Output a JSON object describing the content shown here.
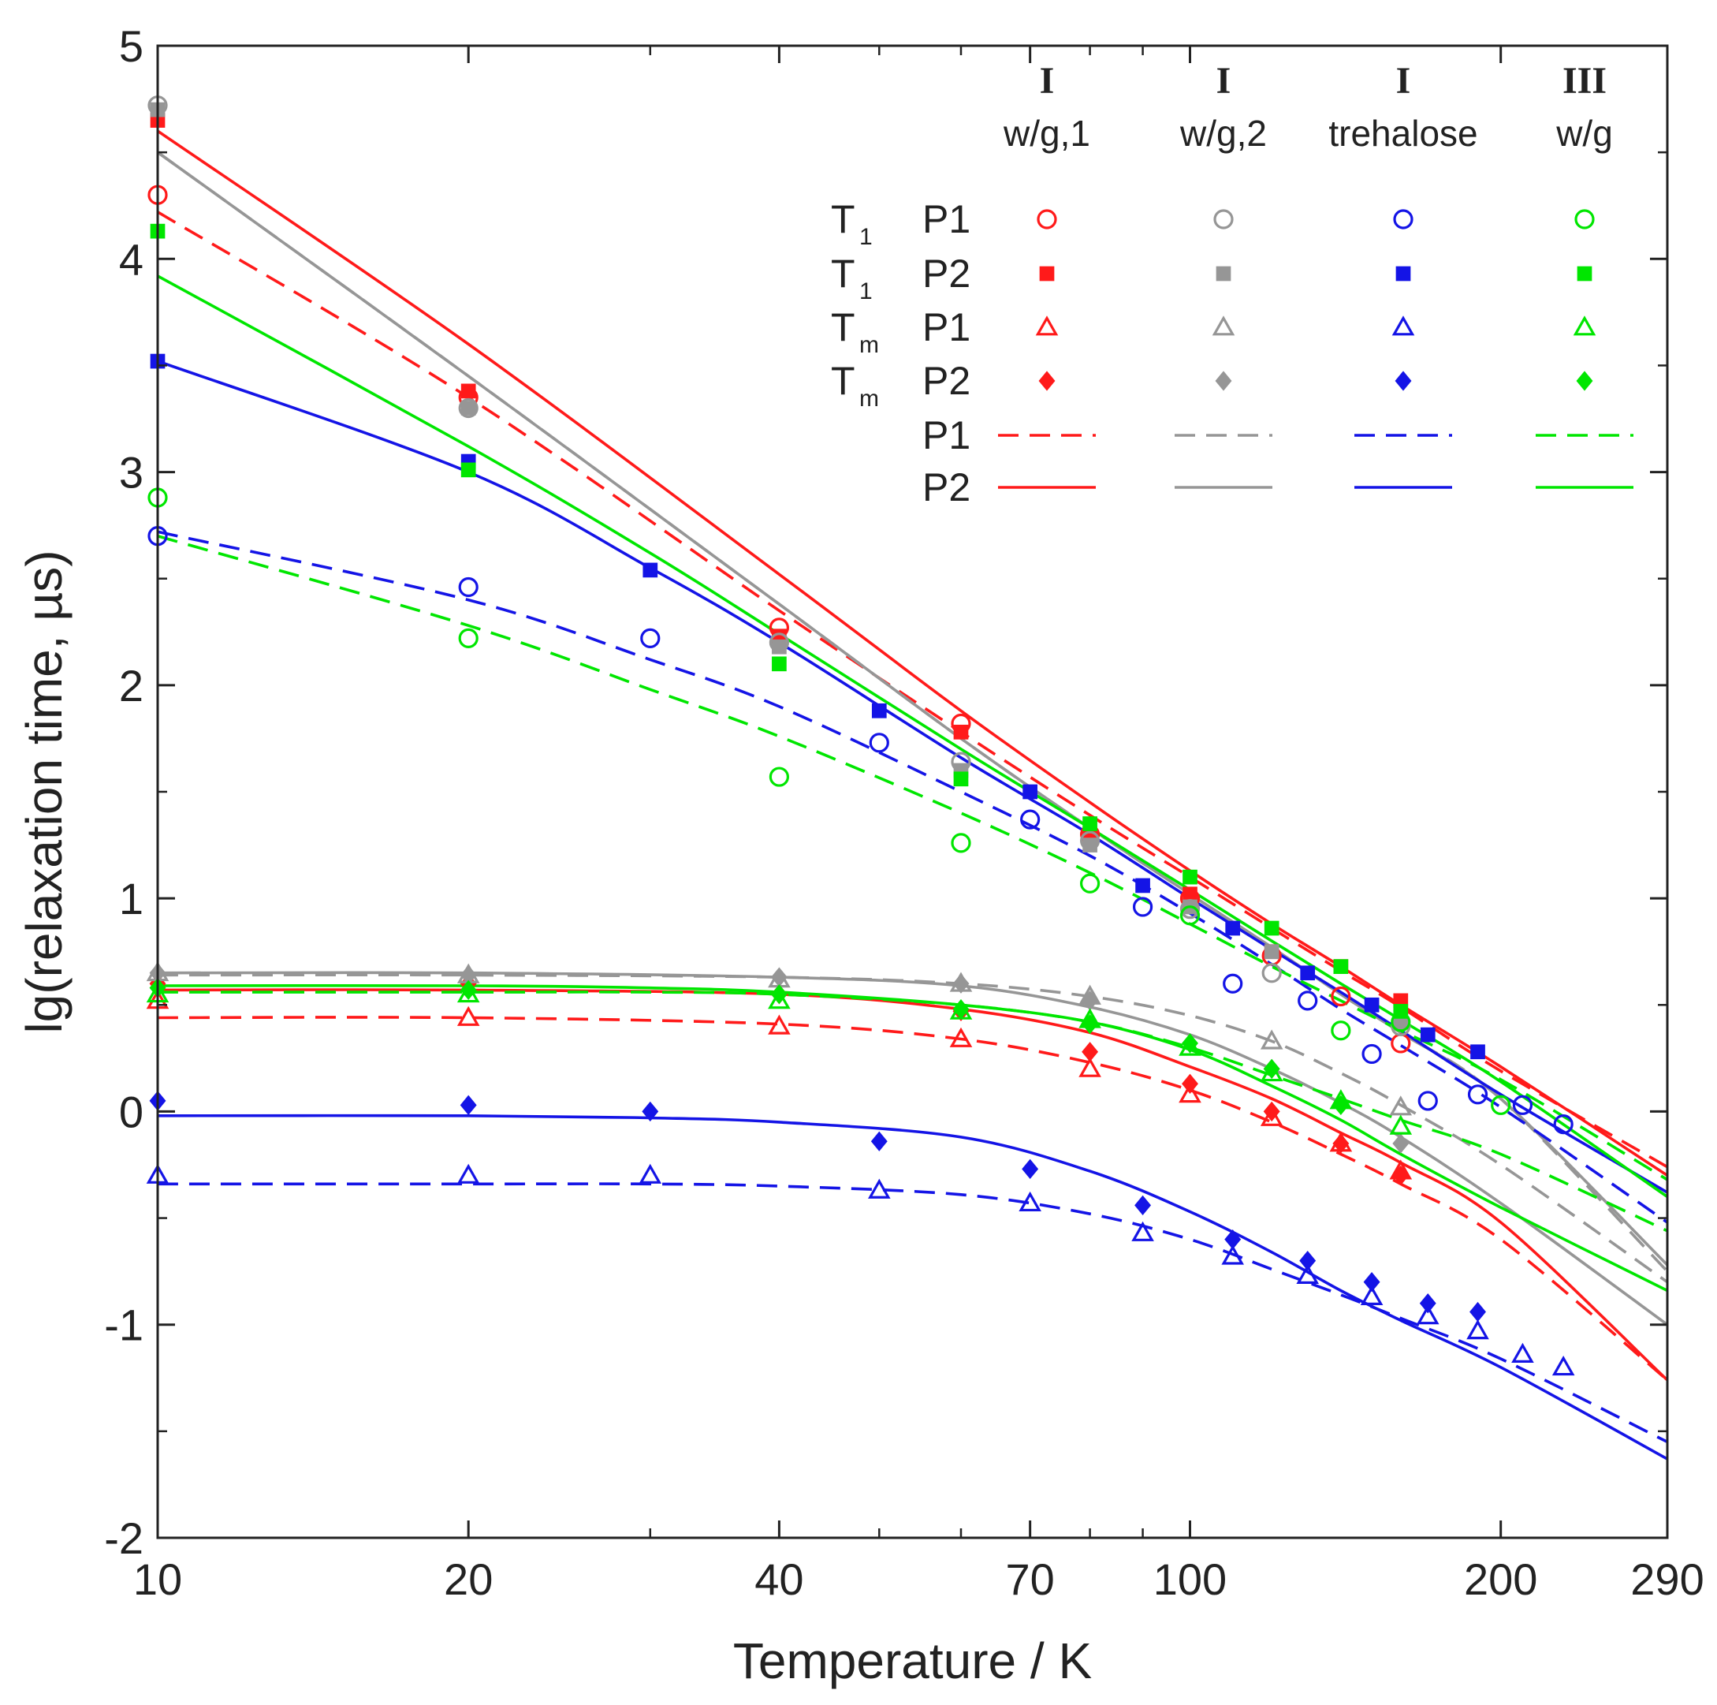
{
  "chart_data": {
    "type": "scatter",
    "x_scale": "log",
    "xlabel": "Temperature / K",
    "ylabel": "lg(relaxation time, µs)",
    "xlim": [
      10,
      290
    ],
    "ylim": [
      -2,
      5
    ],
    "x_ticks": [
      {
        "value": 10,
        "label": "10"
      },
      {
        "value": 20,
        "label": "20"
      },
      {
        "value": 40,
        "label": "40"
      },
      {
        "value": 70,
        "label": "70"
      },
      {
        "value": 100,
        "label": "100"
      },
      {
        "value": 200,
        "label": "200"
      },
      {
        "value": 290,
        "label": "290"
      }
    ],
    "y_ticks": [
      {
        "value": -2,
        "label": "-2"
      },
      {
        "value": -1,
        "label": "-1"
      },
      {
        "value": 0,
        "label": "0"
      },
      {
        "value": 1,
        "label": "1"
      },
      {
        "value": 2,
        "label": "2"
      },
      {
        "value": 3,
        "label": "3"
      },
      {
        "value": 4,
        "label": "4"
      },
      {
        "value": 5,
        "label": "5"
      }
    ],
    "legend": {
      "columns": [
        {
          "roman": "I",
          "name": "w/g,1",
          "color": "#ff1a1a"
        },
        {
          "roman": "I",
          "name": "w/g,2",
          "color": "#969696"
        },
        {
          "roman": "I",
          "name": "trehalose",
          "color": "#1414e6"
        },
        {
          "roman": "III",
          "name": "w/g",
          "color": "#00e600"
        }
      ],
      "rows": [
        {
          "main": "T",
          "sub": "1",
          "label": "P1",
          "marker": "circle-open"
        },
        {
          "main": "T",
          "sub": "1",
          "label": "P2",
          "marker": "square-filled"
        },
        {
          "main": "T",
          "sub": "m",
          "label": "P1",
          "marker": "triangle-open"
        },
        {
          "main": "T",
          "sub": "m",
          "label": "P2",
          "marker": "diamond-filled"
        },
        {
          "main": "",
          "sub": "",
          "label": "P1",
          "marker": "dashed-line"
        },
        {
          "main": "",
          "sub": "",
          "label": "P2",
          "marker": "solid-line"
        }
      ]
    },
    "series": [
      {
        "sample": "w/g,1",
        "color": "#ff1a1a",
        "marker": "circle-open",
        "name": "T1 P1",
        "x": [
          10,
          20,
          40,
          60,
          80,
          100,
          120,
          140,
          160
        ],
        "y": [
          4.3,
          3.35,
          2.27,
          1.82,
          1.3,
          1.0,
          0.73,
          0.54,
          0.32
        ]
      },
      {
        "sample": "w/g,1",
        "color": "#ff1a1a",
        "marker": "square-filled",
        "name": "T1 P2",
        "x": [
          10,
          20,
          40,
          60,
          80,
          100,
          120,
          140,
          160
        ],
        "y": [
          4.65,
          3.38,
          2.23,
          1.78,
          1.3,
          1.02,
          0.75,
          0.68,
          0.52
        ]
      },
      {
        "sample": "w/g,1",
        "color": "#ff1a1a",
        "marker": "triangle-open",
        "name": "Tm P1",
        "x": [
          10,
          20,
          40,
          60,
          80,
          100,
          120,
          140,
          160
        ],
        "y": [
          0.52,
          0.44,
          0.4,
          0.34,
          0.2,
          0.08,
          -0.03,
          -0.15,
          -0.28
        ]
      },
      {
        "sample": "w/g,1",
        "color": "#ff1a1a",
        "marker": "diamond-filled",
        "name": "Tm P2",
        "x": [
          10,
          20,
          40,
          60,
          80,
          100,
          120,
          140,
          160
        ],
        "y": [
          0.6,
          0.6,
          0.55,
          0.47,
          0.28,
          0.13,
          0.0,
          -0.15,
          -0.3
        ]
      },
      {
        "sample": "w/g,1",
        "color": "#ff1a1a",
        "line": "dashed",
        "name": "P1 fit",
        "x": [
          10,
          20,
          40,
          60,
          80,
          100,
          120,
          140,
          160,
          200,
          290
        ],
        "y": [
          4.22,
          3.35,
          2.35,
          1.78,
          1.39,
          1.1,
          0.86,
          0.66,
          0.49,
          0.19,
          -0.26
        ]
      },
      {
        "sample": "w/g,1",
        "color": "#ff1a1a",
        "line": "solid",
        "name": "P2 fit",
        "x": [
          10,
          20,
          40,
          60,
          80,
          100,
          120,
          140,
          160,
          200,
          290
        ],
        "y": [
          4.6,
          3.6,
          2.52,
          1.88,
          1.45,
          1.13,
          0.88,
          0.68,
          0.5,
          0.21,
          -0.3
        ]
      },
      {
        "sample": "w/g,1",
        "color": "#ff1a1a",
        "line": "dashed",
        "name": "Tm P1 fit",
        "x": [
          10,
          20,
          40,
          60,
          80,
          100,
          120,
          140,
          160,
          200,
          290
        ],
        "y": [
          0.44,
          0.44,
          0.41,
          0.34,
          0.23,
          0.1,
          -0.05,
          -0.2,
          -0.34,
          -0.6,
          -1.26
        ]
      },
      {
        "sample": "w/g,1",
        "color": "#ff1a1a",
        "line": "solid",
        "name": "Tm P2 fit",
        "x": [
          10,
          20,
          40,
          60,
          80,
          100,
          120,
          140,
          160,
          200,
          290
        ],
        "y": [
          0.57,
          0.57,
          0.55,
          0.48,
          0.37,
          0.21,
          0.06,
          -0.1,
          -0.24,
          -0.52,
          -1.26
        ]
      },
      {
        "sample": "w/g,2",
        "color": "#969696",
        "marker": "circle-open",
        "name": "T1 P1",
        "x": [
          10,
          20,
          40,
          60,
          80,
          100,
          120,
          160
        ],
        "y": [
          4.72,
          3.3,
          2.2,
          1.64,
          1.27,
          0.95,
          0.65,
          0.4
        ]
      },
      {
        "sample": "w/g,2",
        "color": "#969696",
        "marker": "square-filled",
        "name": "T1 P2",
        "x": [
          10,
          20,
          40,
          60,
          80,
          100,
          120,
          160
        ],
        "y": [
          4.7,
          3.3,
          2.18,
          1.6,
          1.25,
          0.96,
          0.75,
          0.42
        ]
      },
      {
        "sample": "w/g,2",
        "color": "#969696",
        "marker": "triangle-open",
        "name": "Tm P1",
        "x": [
          10,
          20,
          40,
          60,
          80,
          120,
          160
        ],
        "y": [
          0.65,
          0.64,
          0.62,
          0.6,
          0.54,
          0.33,
          0.02
        ]
      },
      {
        "sample": "w/g,2",
        "color": "#969696",
        "marker": "diamond-filled",
        "name": "Tm P2",
        "x": [
          10,
          20,
          40,
          60,
          80,
          120,
          160
        ],
        "y": [
          0.65,
          0.64,
          0.63,
          0.6,
          0.52,
          0.2,
          -0.15
        ]
      },
      {
        "sample": "w/g,2",
        "color": "#969696",
        "line": "dashed",
        "name": "P1 fit",
        "x": [
          10,
          20,
          40,
          60,
          80,
          100,
          120,
          140,
          160,
          200,
          290
        ],
        "y": [
          4.5,
          3.45,
          2.38,
          1.75,
          1.33,
          1.02,
          0.77,
          0.55,
          0.37,
          0.06,
          -0.75
        ]
      },
      {
        "sample": "w/g,2",
        "color": "#969696",
        "line": "solid",
        "name": "P2 fit",
        "x": [
          10,
          20,
          40,
          60,
          80,
          100,
          120,
          140,
          160,
          200,
          290
        ],
        "y": [
          4.5,
          3.45,
          2.38,
          1.75,
          1.33,
          1.02,
          0.77,
          0.55,
          0.37,
          0.06,
          -0.72
        ]
      },
      {
        "sample": "w/g,2",
        "color": "#969696",
        "line": "dashed",
        "name": "Tm P1 fit",
        "x": [
          10,
          20,
          40,
          60,
          80,
          100,
          120,
          140,
          160,
          200,
          290
        ],
        "y": [
          0.64,
          0.64,
          0.63,
          0.6,
          0.54,
          0.45,
          0.33,
          0.18,
          0.03,
          -0.25,
          -0.8
        ]
      },
      {
        "sample": "w/g,2",
        "color": "#969696",
        "line": "solid",
        "name": "Tm P2 fit",
        "x": [
          10,
          20,
          40,
          60,
          80,
          100,
          120,
          140,
          160,
          200,
          290
        ],
        "y": [
          0.65,
          0.65,
          0.63,
          0.59,
          0.49,
          0.36,
          0.2,
          0.04,
          -0.12,
          -0.43,
          -1.0
        ]
      },
      {
        "sample": "trehalose",
        "color": "#1414e6",
        "marker": "circle-open",
        "name": "T1 P1",
        "x": [
          10,
          20,
          30,
          50,
          70,
          90,
          110,
          130,
          150,
          170,
          190,
          210,
          230
        ],
        "y": [
          2.7,
          2.46,
          2.22,
          1.73,
          1.37,
          0.96,
          0.6,
          0.52,
          0.27,
          0.05,
          0.08,
          0.03,
          -0.06
        ]
      },
      {
        "sample": "trehalose",
        "color": "#1414e6",
        "marker": "square-filled",
        "name": "T1 P2",
        "x": [
          10,
          20,
          30,
          50,
          70,
          90,
          110,
          130,
          150,
          170,
          190
        ],
        "y": [
          3.52,
          3.05,
          2.54,
          1.88,
          1.5,
          1.06,
          0.86,
          0.65,
          0.5,
          0.36,
          0.28
        ]
      },
      {
        "sample": "trehalose",
        "color": "#1414e6",
        "marker": "triangle-open",
        "name": "Tm P1",
        "x": [
          10,
          20,
          30,
          50,
          70,
          90,
          110,
          130,
          150,
          170,
          190,
          210,
          230
        ],
        "y": [
          -0.3,
          -0.3,
          -0.3,
          -0.37,
          -0.43,
          -0.57,
          -0.68,
          -0.77,
          -0.87,
          -0.96,
          -1.03,
          -1.14,
          -1.2
        ]
      },
      {
        "sample": "trehalose",
        "color": "#1414e6",
        "marker": "diamond-filled",
        "name": "Tm P2",
        "x": [
          10,
          20,
          30,
          50,
          70,
          90,
          110,
          130,
          150,
          170,
          190
        ],
        "y": [
          0.05,
          0.03,
          0.0,
          -0.14,
          -0.27,
          -0.44,
          -0.6,
          -0.7,
          -0.8,
          -0.9,
          -0.94
        ]
      },
      {
        "sample": "trehalose",
        "color": "#1414e6",
        "line": "dashed",
        "name": "P1 fit",
        "x": [
          10,
          20,
          30,
          40,
          60,
          80,
          100,
          120,
          140,
          160,
          200,
          290
        ],
        "y": [
          2.72,
          2.4,
          2.12,
          1.9,
          1.5,
          1.2,
          0.93,
          0.69,
          0.48,
          0.31,
          0.02,
          -0.52
        ]
      },
      {
        "sample": "trehalose",
        "color": "#1414e6",
        "line": "solid",
        "name": "P2 fit",
        "x": [
          10,
          20,
          30,
          40,
          60,
          80,
          100,
          120,
          140,
          160,
          200,
          290
        ],
        "y": [
          3.52,
          3.0,
          2.55,
          2.2,
          1.66,
          1.3,
          1.0,
          0.76,
          0.56,
          0.38,
          0.08,
          -0.38
        ]
      },
      {
        "sample": "trehalose",
        "color": "#1414e6",
        "line": "dashed",
        "name": "Tm P1 fit",
        "x": [
          10,
          20,
          30,
          40,
          60,
          80,
          100,
          120,
          140,
          160,
          200,
          290
        ],
        "y": [
          -0.34,
          -0.34,
          -0.34,
          -0.35,
          -0.39,
          -0.48,
          -0.6,
          -0.74,
          -0.86,
          -0.97,
          -1.16,
          -1.55
        ]
      },
      {
        "sample": "trehalose",
        "color": "#1414e6",
        "line": "solid",
        "name": "Tm P2 fit",
        "x": [
          10,
          20,
          30,
          40,
          60,
          80,
          100,
          120,
          140,
          160,
          200,
          290
        ],
        "y": [
          -0.02,
          -0.02,
          -0.03,
          -0.05,
          -0.12,
          -0.28,
          -0.47,
          -0.66,
          -0.84,
          -0.98,
          -1.2,
          -1.63
        ]
      },
      {
        "sample": "w/g III",
        "color": "#00e600",
        "marker": "circle-open",
        "name": "T1 P1",
        "x": [
          10,
          20,
          40,
          60,
          80,
          100,
          140,
          160,
          200
        ],
        "y": [
          2.88,
          2.22,
          1.57,
          1.26,
          1.07,
          0.92,
          0.38,
          0.42,
          0.03
        ]
      },
      {
        "sample": "w/g III",
        "color": "#00e600",
        "marker": "square-filled",
        "name": "T1 P2",
        "x": [
          10,
          20,
          40,
          60,
          80,
          100,
          120,
          140,
          160
        ],
        "y": [
          4.13,
          3.01,
          2.1,
          1.56,
          1.35,
          1.1,
          0.86,
          0.68,
          0.47
        ]
      },
      {
        "sample": "w/g III",
        "color": "#00e600",
        "marker": "triangle-open",
        "name": "Tm P1",
        "x": [
          10,
          20,
          40,
          60,
          80,
          100,
          120,
          140,
          160
        ],
        "y": [
          0.55,
          0.55,
          0.52,
          0.47,
          0.43,
          0.3,
          0.18,
          0.05,
          -0.07
        ]
      },
      {
        "sample": "w/g III",
        "color": "#00e600",
        "marker": "diamond-filled",
        "name": "Tm P2",
        "x": [
          10,
          20,
          40,
          60,
          80,
          100,
          120,
          140
        ],
        "y": [
          0.58,
          0.57,
          0.55,
          0.48,
          0.41,
          0.32,
          0.2,
          0.03
        ]
      },
      {
        "sample": "w/g III",
        "color": "#00e600",
        "line": "dashed",
        "name": "P1 fit",
        "x": [
          10,
          20,
          30,
          40,
          60,
          80,
          100,
          120,
          140,
          160,
          200,
          290
        ],
        "y": [
          2.7,
          2.28,
          1.98,
          1.76,
          1.4,
          1.12,
          0.88,
          0.68,
          0.52,
          0.38,
          0.15,
          -0.32
        ]
      },
      {
        "sample": "w/g III",
        "color": "#00e600",
        "line": "solid",
        "name": "P2 fit",
        "x": [
          10,
          20,
          30,
          40,
          60,
          80,
          100,
          120,
          140,
          160,
          200,
          290
        ],
        "y": [
          3.92,
          3.12,
          2.62,
          2.24,
          1.7,
          1.33,
          1.04,
          0.8,
          0.6,
          0.43,
          0.14,
          -0.4
        ]
      },
      {
        "sample": "w/g III",
        "color": "#00e600",
        "line": "dashed",
        "name": "Tm P1 fit",
        "x": [
          10,
          20,
          30,
          40,
          60,
          80,
          100,
          120,
          140,
          160,
          200,
          290
        ],
        "y": [
          0.56,
          0.56,
          0.56,
          0.55,
          0.5,
          0.42,
          0.3,
          0.17,
          0.06,
          -0.04,
          -0.2,
          -0.56
        ]
      },
      {
        "sample": "w/g III",
        "color": "#00e600",
        "line": "solid",
        "name": "Tm P2 fit",
        "x": [
          10,
          20,
          30,
          40,
          60,
          80,
          100,
          120,
          140,
          160,
          200,
          290
        ],
        "y": [
          0.59,
          0.59,
          0.58,
          0.56,
          0.5,
          0.42,
          0.29,
          0.12,
          -0.04,
          -0.2,
          -0.45,
          -0.84
        ]
      }
    ]
  }
}
